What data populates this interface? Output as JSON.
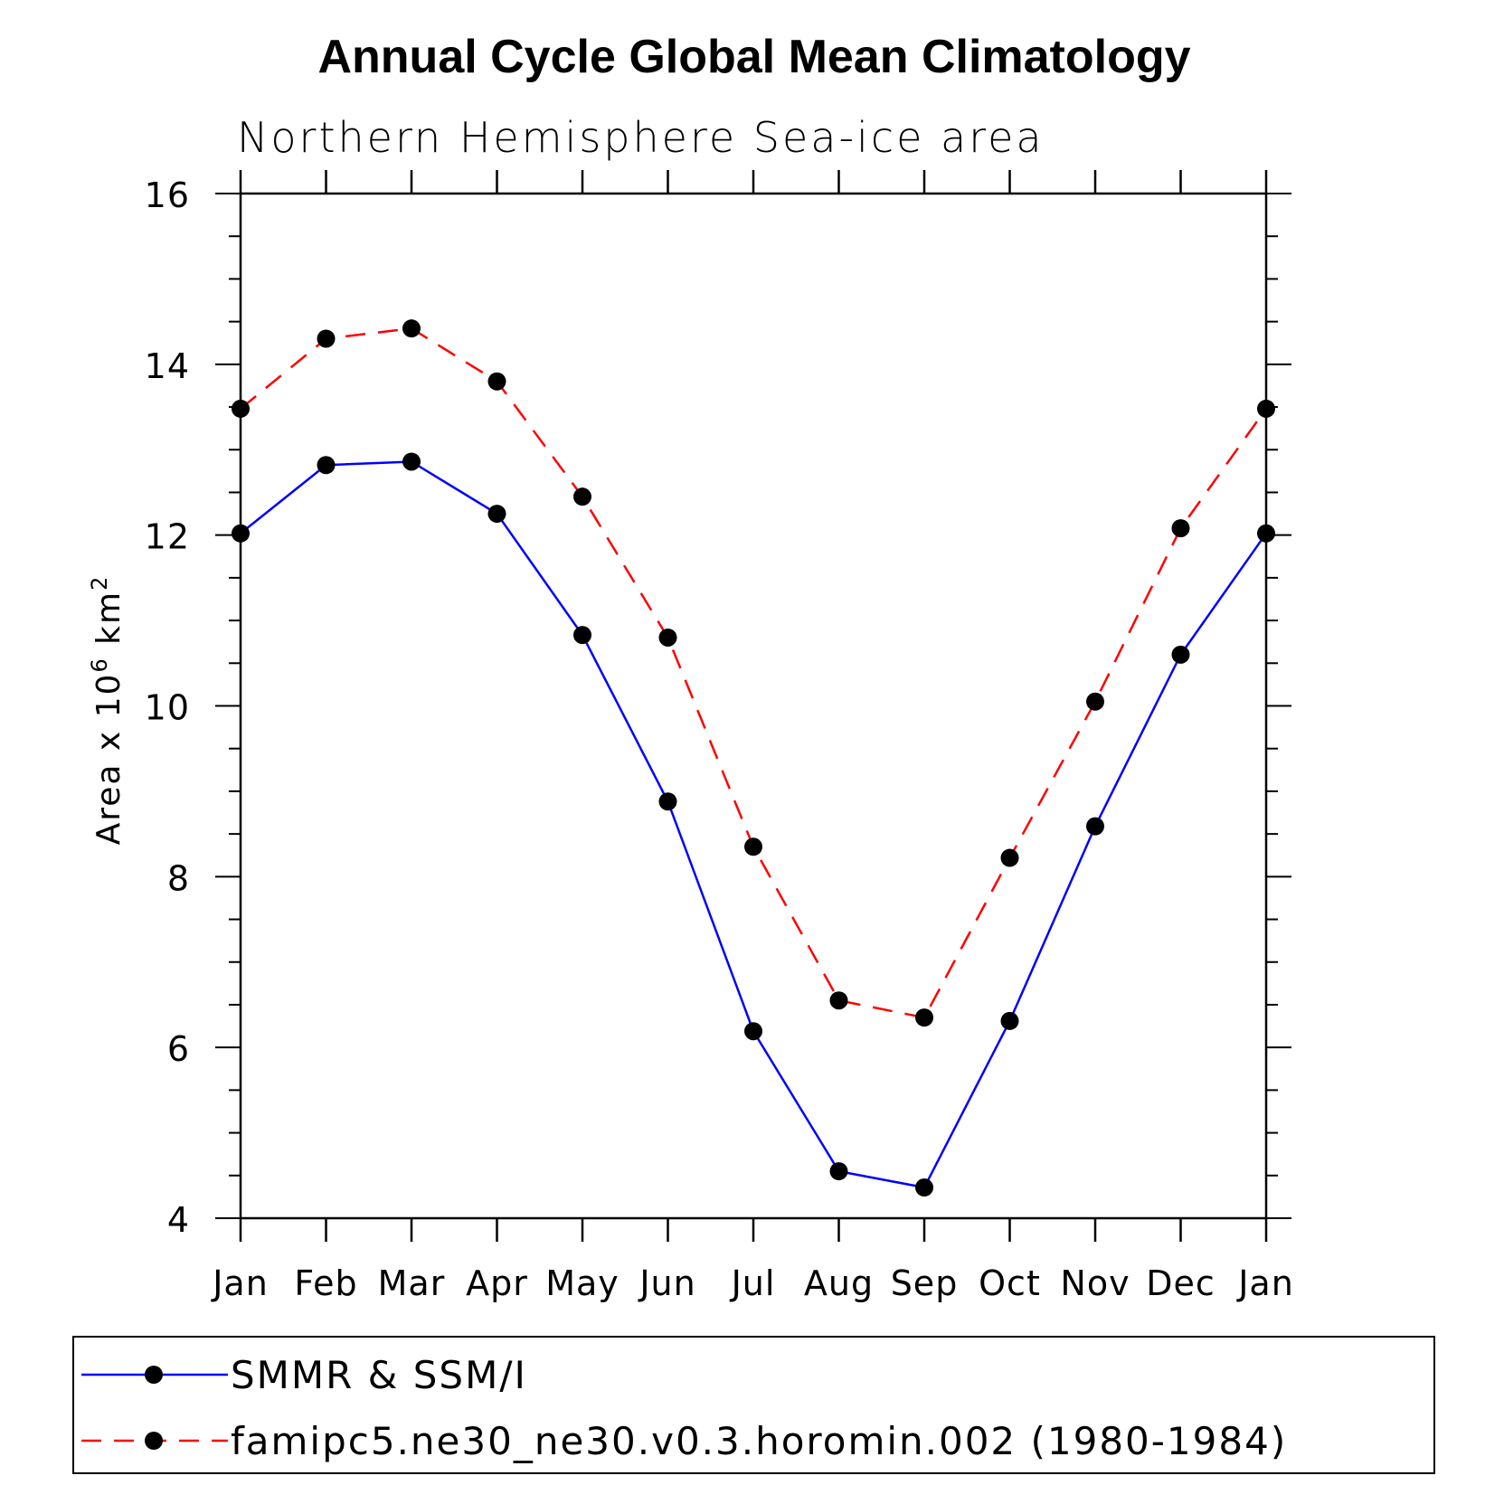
{
  "chart_data": {
    "type": "line",
    "title": "Annual Cycle Global Mean Climatology",
    "subtitle": "Northern Hemisphere Sea-ice area",
    "ylabel": "Area x 10",
    "ylabel_exp": "6",
    "ylabel_unit": "km",
    "ylabel_unit_exp": "2",
    "categories": [
      "Jan",
      "Feb",
      "Mar",
      "Apr",
      "May",
      "Jun",
      "Jul",
      "Aug",
      "Sep",
      "Oct",
      "Nov",
      "Dec",
      "Jan"
    ],
    "ylim": [
      4,
      16
    ],
    "yticks": [
      4,
      6,
      8,
      10,
      12,
      14,
      16
    ],
    "series": [
      {
        "name": "SMMR & SSM/I",
        "color": "#0000ff",
        "dash": "solid",
        "values": [
          12.02,
          12.82,
          12.86,
          12.25,
          10.83,
          8.88,
          6.19,
          4.55,
          4.36,
          6.31,
          8.59,
          10.6,
          12.02
        ]
      },
      {
        "name": "famipc5.ne30_ne30.v0.3.horomin.002 (1980-1984)",
        "color": "#ff0000",
        "dash": "dashed",
        "values": [
          13.48,
          14.3,
          14.42,
          13.8,
          12.45,
          10.8,
          8.35,
          6.55,
          6.35,
          8.22,
          10.05,
          12.08,
          13.48
        ]
      }
    ],
    "marker_color": "#000000",
    "grid": false,
    "legend_position": "bottom"
  }
}
